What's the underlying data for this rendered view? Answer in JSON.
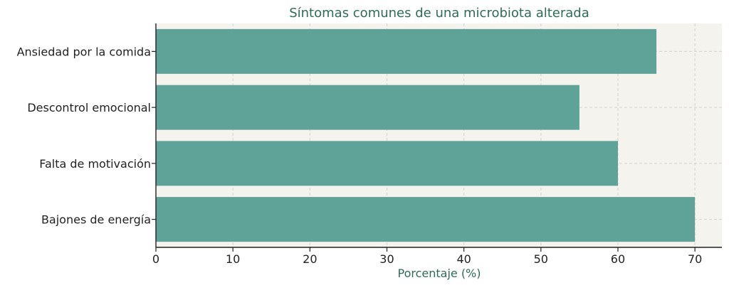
{
  "chart_data": {
    "type": "bar",
    "orientation": "horizontal",
    "title": "Síntomas comunes de una microbiota alterada",
    "xlabel": "Porcentaje (%)",
    "ylabel": "",
    "categories": [
      "Ansiedad por la comida",
      "Descontrol emocional",
      "Falta de motivación",
      "Bajones de energía"
    ],
    "values": [
      65,
      55,
      60,
      70
    ],
    "xlim": [
      0,
      73.5
    ],
    "xticks": [
      0,
      10,
      20,
      30,
      40,
      50,
      60,
      70
    ],
    "grid": true,
    "legend": "none",
    "colors": {
      "bar": "#5fa398",
      "plot_background": "#f4f3ee",
      "title": "#2f6b59",
      "axis_label": "#2f6b59"
    }
  }
}
